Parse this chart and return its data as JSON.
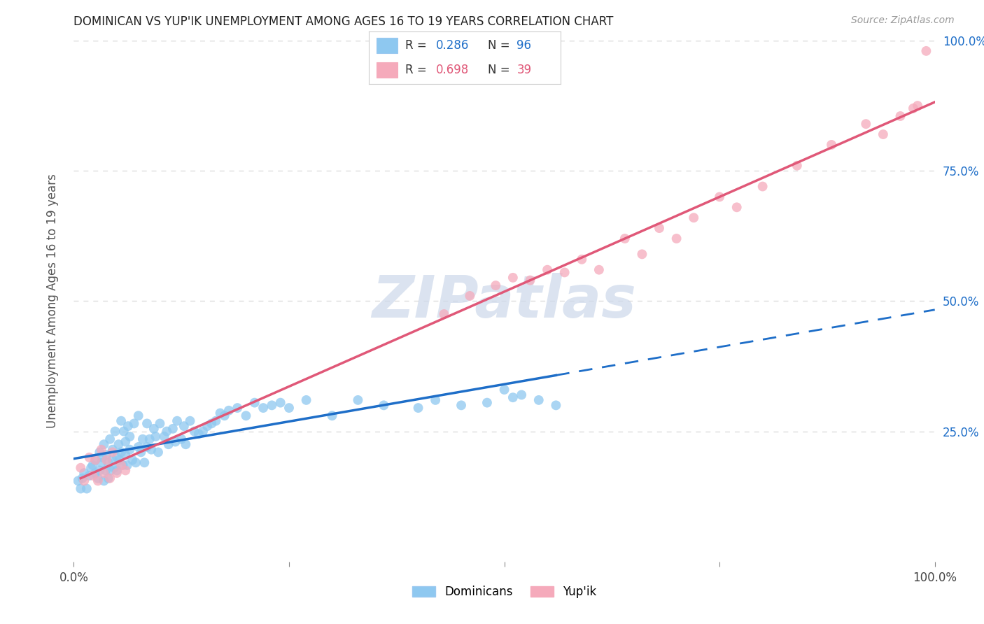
{
  "title": "DOMINICAN VS YUP'IK UNEMPLOYMENT AMONG AGES 16 TO 19 YEARS CORRELATION CHART",
  "source": "Source: ZipAtlas.com",
  "ylabel": "Unemployment Among Ages 16 to 19 years",
  "xlim": [
    0.0,
    1.0
  ],
  "ylim": [
    0.0,
    1.0
  ],
  "xtick_positions": [
    0.0,
    0.25,
    0.5,
    0.75,
    1.0
  ],
  "xtick_labels_sparse": [
    "0.0%",
    "",
    "",
    "",
    "100.0%"
  ],
  "ytick_vals": [
    0.25,
    0.5,
    0.75,
    1.0
  ],
  "ytick_labels": [
    "25.0%",
    "50.0%",
    "75.0%",
    "100.0%"
  ],
  "dominican_color": "#8EC8F0",
  "yupik_color": "#F5AABB",
  "dominican_line_color": "#1E6EC8",
  "yupik_line_color": "#E05878",
  "r_dominican": "0.286",
  "n_dominican": "96",
  "r_yupik": "0.698",
  "n_yupik": "39",
  "legend_label_dominican": "Dominicans",
  "legend_label_yupik": "Yup'ik",
  "dominican_x": [
    0.005,
    0.008,
    0.01,
    0.012,
    0.015,
    0.018,
    0.02,
    0.022,
    0.025,
    0.025,
    0.028,
    0.03,
    0.03,
    0.032,
    0.033,
    0.035,
    0.035,
    0.037,
    0.038,
    0.04,
    0.04,
    0.042,
    0.043,
    0.045,
    0.045,
    0.047,
    0.048,
    0.05,
    0.05,
    0.052,
    0.053,
    0.055,
    0.055,
    0.057,
    0.058,
    0.06,
    0.06,
    0.062,
    0.063,
    0.065,
    0.065,
    0.068,
    0.07,
    0.072,
    0.075,
    0.075,
    0.078,
    0.08,
    0.082,
    0.085,
    0.085,
    0.088,
    0.09,
    0.093,
    0.095,
    0.098,
    0.1,
    0.105,
    0.108,
    0.11,
    0.115,
    0.118,
    0.12,
    0.125,
    0.128,
    0.13,
    0.135,
    0.14,
    0.145,
    0.15,
    0.155,
    0.16,
    0.165,
    0.17,
    0.175,
    0.18,
    0.19,
    0.2,
    0.21,
    0.22,
    0.23,
    0.24,
    0.25,
    0.27,
    0.3,
    0.33,
    0.36,
    0.4,
    0.42,
    0.45,
    0.48,
    0.5,
    0.51,
    0.52,
    0.54,
    0.56
  ],
  "dominican_y": [
    0.155,
    0.14,
    0.16,
    0.17,
    0.14,
    0.165,
    0.18,
    0.185,
    0.17,
    0.195,
    0.16,
    0.175,
    0.21,
    0.19,
    0.2,
    0.155,
    0.225,
    0.175,
    0.205,
    0.19,
    0.16,
    0.235,
    0.175,
    0.195,
    0.215,
    0.18,
    0.25,
    0.2,
    0.175,
    0.225,
    0.195,
    0.21,
    0.27,
    0.185,
    0.25,
    0.205,
    0.23,
    0.185,
    0.26,
    0.215,
    0.24,
    0.195,
    0.265,
    0.19,
    0.22,
    0.28,
    0.21,
    0.235,
    0.19,
    0.22,
    0.265,
    0.235,
    0.215,
    0.255,
    0.24,
    0.21,
    0.265,
    0.24,
    0.25,
    0.225,
    0.255,
    0.23,
    0.27,
    0.235,
    0.26,
    0.225,
    0.27,
    0.25,
    0.245,
    0.25,
    0.26,
    0.265,
    0.27,
    0.285,
    0.28,
    0.29,
    0.295,
    0.28,
    0.305,
    0.295,
    0.3,
    0.305,
    0.295,
    0.31,
    0.28,
    0.31,
    0.3,
    0.295,
    0.31,
    0.3,
    0.305,
    0.33,
    0.315,
    0.32,
    0.31,
    0.3
  ],
  "yupik_x": [
    0.008,
    0.012,
    0.018,
    0.022,
    0.025,
    0.028,
    0.032,
    0.035,
    0.038,
    0.042,
    0.045,
    0.05,
    0.055,
    0.06,
    0.43,
    0.46,
    0.49,
    0.51,
    0.53,
    0.55,
    0.57,
    0.59,
    0.61,
    0.64,
    0.66,
    0.68,
    0.7,
    0.72,
    0.75,
    0.77,
    0.8,
    0.84,
    0.88,
    0.92,
    0.94,
    0.96,
    0.975,
    0.98,
    0.99
  ],
  "yupik_y": [
    0.18,
    0.155,
    0.2,
    0.165,
    0.195,
    0.155,
    0.215,
    0.17,
    0.195,
    0.16,
    0.21,
    0.17,
    0.185,
    0.175,
    0.475,
    0.51,
    0.53,
    0.545,
    0.54,
    0.56,
    0.555,
    0.58,
    0.56,
    0.62,
    0.59,
    0.64,
    0.62,
    0.66,
    0.7,
    0.68,
    0.72,
    0.76,
    0.8,
    0.84,
    0.82,
    0.855,
    0.87,
    0.875,
    0.98
  ],
  "watermark_text": "ZIPatlas",
  "watermark_color": "#CCD8EA",
  "background_color": "#FFFFFF",
  "grid_color": "#DDDDDD",
  "dom_line_end_x": 0.56
}
